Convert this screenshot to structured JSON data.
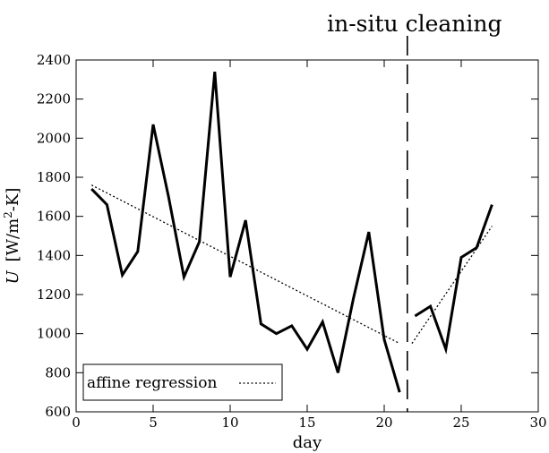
{
  "chart_data": {
    "type": "line",
    "title": "",
    "xlabel": "day",
    "ylabel_italic": "U",
    "ylabel_units_prefix": "[W/m",
    "ylabel_units_sup": "2",
    "ylabel_units_suffix": "-K]",
    "xlim": [
      0,
      30
    ],
    "ylim": [
      600,
      2400
    ],
    "xticks": [
      "0",
      "5",
      "10",
      "15",
      "20",
      "25",
      "30"
    ],
    "yticks": [
      "600",
      "800",
      "1000",
      "1200",
      "1400",
      "1600",
      "1800",
      "2000",
      "2200",
      "2400"
    ],
    "grid": false,
    "legend_position": "lower-left",
    "legend_label": "affine regression",
    "annotation": {
      "text": "in-situ cleaning",
      "x": 21.5
    },
    "series": [
      {
        "segment": "before-cleaning",
        "style": "solid",
        "x": [
          1,
          2,
          3,
          4,
          5,
          6,
          7,
          8,
          9,
          10,
          11,
          12,
          13,
          14,
          15,
          16,
          17,
          18,
          19,
          20,
          21
        ],
        "y": [
          1740,
          1660,
          1300,
          1420,
          2070,
          1700,
          1290,
          1470,
          2340,
          1290,
          1580,
          1050,
          1000,
          1040,
          920,
          1060,
          800,
          1180,
          1520,
          970,
          700
        ]
      },
      {
        "segment": "after-cleaning",
        "style": "solid",
        "x": [
          22,
          23,
          24,
          25,
          26,
          27
        ],
        "y": [
          1090,
          1140,
          920,
          1390,
          1440,
          1660
        ]
      },
      {
        "name": "affine regression",
        "segment": "before-cleaning-fit",
        "style": "dotted",
        "x": [
          1,
          21
        ],
        "y": [
          1760,
          950
        ]
      },
      {
        "name": "affine regression",
        "segment": "after-cleaning-fit",
        "style": "dotted",
        "x": [
          21.8,
          27
        ],
        "y": [
          950,
          1550
        ]
      }
    ]
  }
}
